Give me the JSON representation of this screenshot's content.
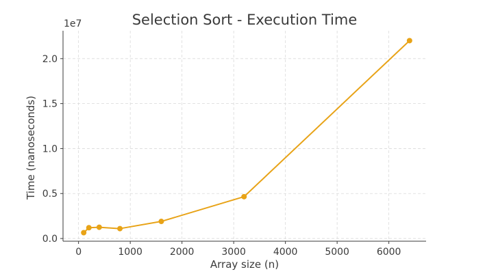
{
  "chart_data": {
    "type": "line",
    "title": "Selection Sort - Execution Time",
    "xlabel": "Array size (n)",
    "ylabel": "Time (nanoseconds)",
    "y_multiplier_label": "1e7",
    "y_multiplier": 10000000,
    "xlim": [
      -300,
      6720
    ],
    "ylim": [
      -300000,
      23100000
    ],
    "x_ticks": [
      0,
      1000,
      2000,
      3000,
      4000,
      5000,
      6000
    ],
    "x_tick_labels": [
      "0",
      "1000",
      "2000",
      "3000",
      "4000",
      "5000",
      "6000"
    ],
    "y_ticks": [
      0,
      5000000,
      10000000,
      15000000,
      20000000
    ],
    "y_tick_labels": [
      "0.0",
      "0.5",
      "1.0",
      "1.5",
      "2.0"
    ],
    "grid": true,
    "series": [
      {
        "color": "#e8a317",
        "marker": "circle",
        "x": [
          100,
          200,
          400,
          800,
          1600,
          3200,
          6400
        ],
        "y": [
          650000,
          1200000,
          1250000,
          1100000,
          1900000,
          4650000,
          22000000
        ]
      }
    ]
  }
}
